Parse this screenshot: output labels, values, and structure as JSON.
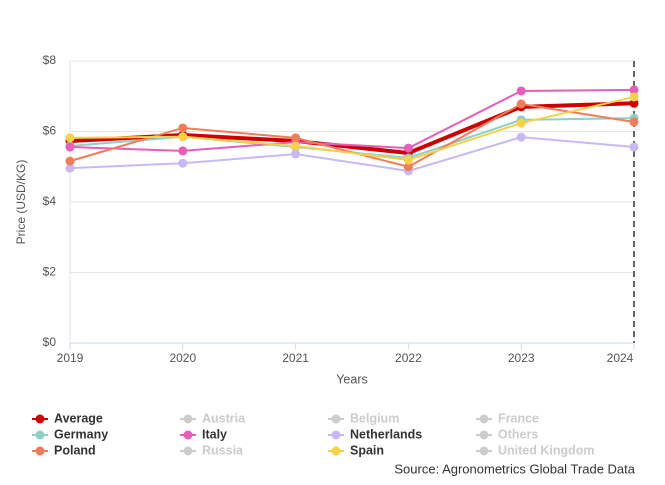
{
  "chart_data": {
    "type": "line",
    "x_label": "Years",
    "y_label": "Price (USD/KG)",
    "source": "Source: Agronometrics Global Trade Data",
    "x": [
      2019,
      2020,
      2021,
      2022,
      2023,
      2024
    ],
    "xlim": [
      2019,
      2024
    ],
    "xticks": [
      2019,
      2020,
      2021,
      2022,
      2023,
      2024
    ],
    "ylim": [
      0,
      8
    ],
    "yticks": [
      {
        "value": 0,
        "label": "$0"
      },
      {
        "value": 2,
        "label": "$2"
      },
      {
        "value": 4,
        "label": "$4"
      },
      {
        "value": 6,
        "label": "$6"
      },
      {
        "value": 8,
        "label": "$8"
      }
    ],
    "grid": true,
    "series": [
      {
        "name": "Average",
        "color": "#cc0000",
        "visible": true,
        "values": [
          5.73,
          5.9,
          5.73,
          5.39,
          6.7,
          6.8
        ]
      },
      {
        "name": "Austria",
        "color": "#cccccc",
        "visible": false,
        "values": [
          null,
          null,
          null,
          null,
          null,
          null
        ]
      },
      {
        "name": "Belgium",
        "color": "#cccccc",
        "visible": false,
        "values": [
          null,
          null,
          null,
          null,
          null,
          null
        ]
      },
      {
        "name": "France",
        "color": "#cccccc",
        "visible": false,
        "values": [
          null,
          null,
          null,
          null,
          null,
          null
        ]
      },
      {
        "name": "Germany",
        "color": "#8fcfc9",
        "visible": true,
        "values": [
          5.59,
          5.85,
          5.56,
          5.25,
          6.33,
          6.38
        ]
      },
      {
        "name": "Italy",
        "color": "#e85db8",
        "visible": true,
        "values": [
          5.56,
          5.45,
          5.7,
          5.53,
          7.15,
          7.18
        ]
      },
      {
        "name": "Netherlands",
        "color": "#c8b8f5",
        "visible": true,
        "values": [
          4.96,
          5.1,
          5.36,
          4.88,
          5.84,
          5.56
        ]
      },
      {
        "name": "Others",
        "color": "#cccccc",
        "visible": false,
        "values": [
          null,
          null,
          null,
          null,
          null,
          null
        ]
      },
      {
        "name": "Poland",
        "color": "#f07c5a",
        "visible": true,
        "values": [
          5.16,
          6.1,
          5.82,
          5.0,
          6.78,
          6.27
        ]
      },
      {
        "name": "Russia",
        "color": "#cccccc",
        "visible": false,
        "values": [
          null,
          null,
          null,
          null,
          null,
          null
        ]
      },
      {
        "name": "Spain",
        "color": "#f8d04a",
        "visible": true,
        "values": [
          5.82,
          5.85,
          5.59,
          5.19,
          6.24,
          6.98
        ]
      },
      {
        "name": "United Kingdom",
        "color": "#cccccc",
        "visible": false,
        "values": [
          null,
          null,
          null,
          null,
          null,
          null
        ]
      }
    ]
  }
}
